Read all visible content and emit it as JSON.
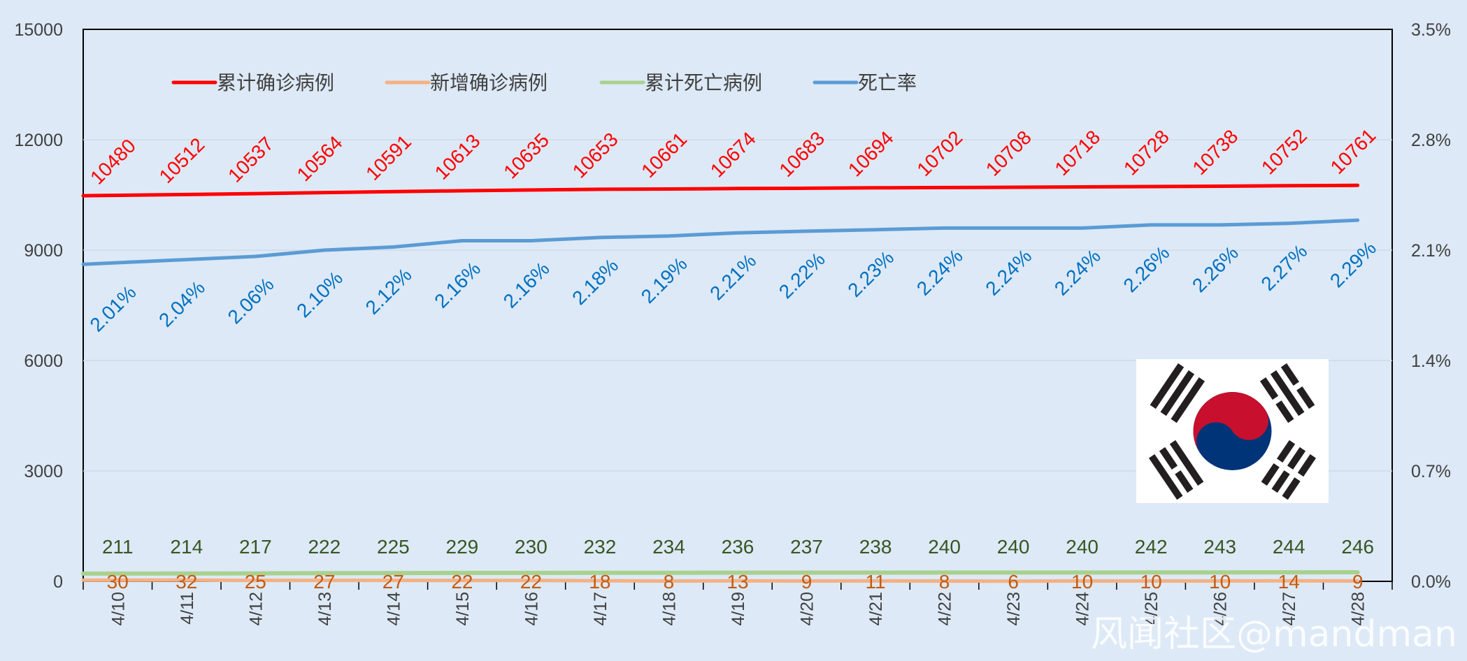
{
  "colors": {
    "background": "#dde9f6",
    "plot_background": "#dde9f6",
    "confirmed": "#ff0000",
    "new_cases": "#f4b183",
    "deaths": "#a9d18e",
    "death_rate": "#5b9bd5",
    "confirmed_label": "#ff0000",
    "new_label": "#c55a11",
    "deaths_label": "#375623",
    "rate_label": "#0070c0",
    "axis_text": "#404040",
    "flag_red": "#c8102e",
    "flag_blue": "#003478",
    "flag_black": "#231f20"
  },
  "watermark": "风闻社区@mandman",
  "flag_icon": "south-korea-flag",
  "chart_data": {
    "type": "line",
    "categories": [
      "4/10",
      "4/11",
      "4/12",
      "4/13",
      "4/14",
      "4/15",
      "4/16",
      "4/17",
      "4/18",
      "4/19",
      "4/20",
      "4/21",
      "4/22",
      "4/23",
      "4/24",
      "4/25",
      "4/26",
      "4/27",
      "4/28"
    ],
    "y_left": {
      "range": [
        0,
        15000
      ],
      "ticks": [
        "0",
        "3000",
        "6000",
        "9000",
        "12000",
        "15000"
      ]
    },
    "y_right": {
      "range": [
        0,
        3.5
      ],
      "ticks": [
        "0.0%",
        "0.7%",
        "1.4%",
        "2.1%",
        "2.8%",
        "3.5%"
      ]
    },
    "legend_position": "top-left",
    "grid": true,
    "series": [
      {
        "name": "累计确诊病例",
        "axis": "left",
        "values": [
          10480,
          10512,
          10537,
          10564,
          10591,
          10613,
          10635,
          10653,
          10661,
          10674,
          10683,
          10694,
          10702,
          10708,
          10718,
          10728,
          10738,
          10752,
          10761
        ],
        "labels": [
          "10480",
          "10512",
          "10537",
          "10564",
          "10591",
          "10613",
          "10635",
          "10653",
          "10661",
          "10674",
          "10683",
          "10694",
          "10702",
          "10708",
          "10718",
          "10728",
          "10738",
          "10752",
          "10761"
        ]
      },
      {
        "name": "新增确诊病例",
        "axis": "left",
        "values": [
          30,
          32,
          25,
          27,
          27,
          22,
          22,
          18,
          8,
          13,
          9,
          11,
          8,
          6,
          10,
          10,
          10,
          14,
          9
        ],
        "labels": [
          "30",
          "32",
          "25",
          "27",
          "27",
          "22",
          "22",
          "18",
          "8",
          "13",
          "9",
          "11",
          "8",
          "6",
          "10",
          "10",
          "10",
          "14",
          "9"
        ]
      },
      {
        "name": "累计死亡病例",
        "axis": "left",
        "values": [
          211,
          214,
          217,
          222,
          225,
          229,
          230,
          232,
          234,
          236,
          237,
          238,
          240,
          240,
          240,
          242,
          243,
          244,
          246
        ],
        "labels": [
          "211",
          "214",
          "217",
          "222",
          "225",
          "229",
          "230",
          "232",
          "234",
          "236",
          "237",
          "238",
          "240",
          "240",
          "240",
          "242",
          "243",
          "244",
          "246"
        ]
      },
      {
        "name": "死亡率",
        "axis": "right",
        "values": [
          2.01,
          2.04,
          2.06,
          2.1,
          2.12,
          2.16,
          2.16,
          2.18,
          2.19,
          2.21,
          2.22,
          2.23,
          2.24,
          2.24,
          2.24,
          2.26,
          2.26,
          2.27,
          2.29
        ],
        "labels": [
          "2.01%",
          "2.04%",
          "2.06%",
          "2.10%",
          "2.12%",
          "2.16%",
          "2.16%",
          "2.18%",
          "2.19%",
          "2.21%",
          "2.22%",
          "2.23%",
          "2.24%",
          "2.24%",
          "2.24%",
          "2.26%",
          "2.26%",
          "2.27%",
          "2.29%"
        ]
      }
    ]
  }
}
